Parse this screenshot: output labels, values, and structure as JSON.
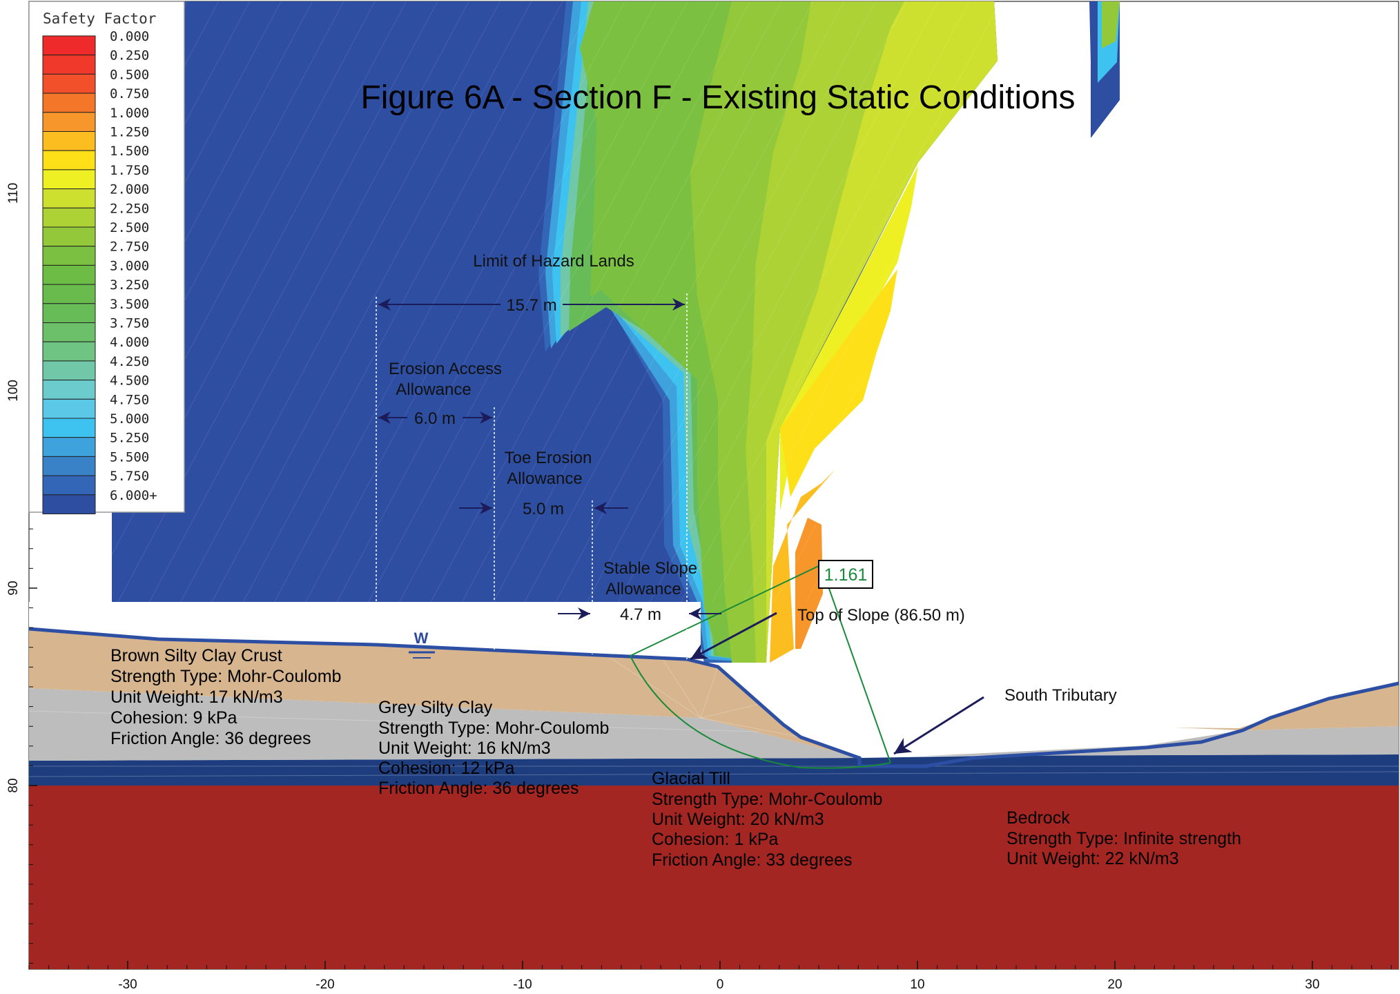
{
  "title": "Figure 6A - Section F - Existing Static Conditions",
  "legend": {
    "title": "Safety Factor",
    "items": [
      {
        "label": "0.000",
        "color": "#ee2a2a"
      },
      {
        "label": "0.250",
        "color": "#f0392a"
      },
      {
        "label": "0.500",
        "color": "#f2502a"
      },
      {
        "label": "0.750",
        "color": "#f47628"
      },
      {
        "label": "1.000",
        "color": "#f7962a"
      },
      {
        "label": "1.250",
        "color": "#fbbd20"
      },
      {
        "label": "1.500",
        "color": "#fde018"
      },
      {
        "label": "1.750",
        "color": "#eef023"
      },
      {
        "label": "2.000",
        "color": "#cee02f"
      },
      {
        "label": "2.250",
        "color": "#acd236"
      },
      {
        "label": "2.500",
        "color": "#93c83a"
      },
      {
        "label": "2.750",
        "color": "#7cc041"
      },
      {
        "label": "3.000",
        "color": "#6dbc46"
      },
      {
        "label": "3.250",
        "color": "#68bb4c"
      },
      {
        "label": "3.500",
        "color": "#68bc58"
      },
      {
        "label": "3.750",
        "color": "#6cc06a"
      },
      {
        "label": "4.000",
        "color": "#6fc383"
      },
      {
        "label": "4.250",
        "color": "#70c8a8"
      },
      {
        "label": "4.500",
        "color": "#6ccbcc"
      },
      {
        "label": "4.750",
        "color": "#5bc8e8"
      },
      {
        "label": "5.000",
        "color": "#3ec3f0"
      },
      {
        "label": "5.250",
        "color": "#3ea3dc"
      },
      {
        "label": "5.500",
        "color": "#3a82c8"
      },
      {
        "label": "5.750",
        "color": "#3466b8"
      },
      {
        "label": "6.000+",
        "color": "#2e4ea2"
      }
    ]
  },
  "axes": {
    "x_ticks": [
      "-30",
      "-20",
      "-10",
      "0",
      "10",
      "20",
      "30"
    ],
    "y_ticks": [
      "80",
      "90",
      "100",
      "110"
    ]
  },
  "annotations": {
    "hazard_label": "Limit of Hazard Lands",
    "hazard_dim": "15.7 m",
    "erosion_access_line1": "Erosion Access",
    "erosion_access_line2": "Allowance",
    "erosion_access_dim": "6.0 m",
    "toe_erosion_line1": "Toe Erosion",
    "toe_erosion_line2": "Allowance",
    "toe_erosion_dim": "5.0 m",
    "stable_slope_line1": "Stable Slope",
    "stable_slope_line2": "Allowance",
    "stable_slope_dim": "4.7 m",
    "safety_factor_value": "1.161",
    "top_of_slope": "Top of Slope (86.50 m)",
    "south_tributary": "South Tributary",
    "water_marker": "W"
  },
  "materials": [
    {
      "name": "Brown Silty Clay Crust",
      "strength": "Strength Type: Mohr-Coulomb",
      "unit_weight": "Unit Weight: 17 kN/m3",
      "cohesion": "Cohesion: 9 kPa",
      "friction": "Friction Angle: 36 degrees",
      "color": "#d6b58f"
    },
    {
      "name": "Grey Silty Clay",
      "strength": "Strength Type: Mohr-Coulomb",
      "unit_weight": "Unit Weight: 16 kN/m3",
      "cohesion": "Cohesion: 12 kPa",
      "friction": "Friction Angle: 36 degrees",
      "color": "#bdbdbd"
    },
    {
      "name": "Glacial Till",
      "strength": "Strength Type: Mohr-Coulomb",
      "unit_weight": "Unit Weight: 20 kN/m3",
      "cohesion": "Cohesion: 1 kPa",
      "friction": "Friction Angle: 33 degrees",
      "color": "#1d3d7e"
    },
    {
      "name": "Bedrock",
      "strength": "Strength Type: Infinite strength",
      "unit_weight": "Unit Weight: 22 kN/m3",
      "color": "#a32622"
    }
  ]
}
